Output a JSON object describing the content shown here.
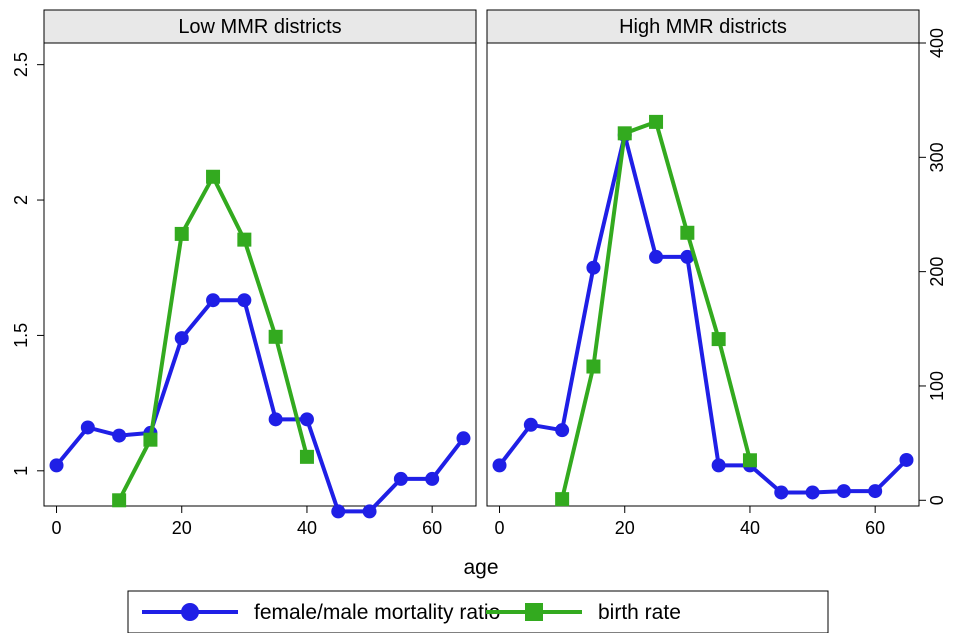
{
  "chart_data": {
    "type": "line",
    "xlabel": "age",
    "panels": [
      {
        "title": "Low MMR districts",
        "series": [
          {
            "name": "female/male mortality ratio",
            "axis": "left",
            "color": "#1f1fe6",
            "marker": "circle",
            "x": [
              0,
              5,
              10,
              15,
              20,
              25,
              30,
              35,
              40,
              45,
              50,
              55,
              60,
              65
            ],
            "values": [
              1.02,
              1.16,
              1.13,
              1.14,
              1.49,
              1.63,
              1.63,
              1.19,
              1.19,
              0.85,
              0.85,
              0.97,
              0.97,
              1.12
            ]
          },
          {
            "name": "birth rate",
            "axis": "right",
            "color": "#33aa1f",
            "marker": "square",
            "x": [
              10,
              15,
              20,
              25,
              30,
              35,
              40
            ],
            "values": [
              0,
              53,
              233,
              283,
              228,
              143,
              38
            ]
          }
        ]
      },
      {
        "title": "High MMR districts",
        "series": [
          {
            "name": "female/male mortality ratio",
            "axis": "left",
            "color": "#1f1fe6",
            "marker": "circle",
            "x": [
              0,
              5,
              10,
              15,
              20,
              25,
              30,
              35,
              40,
              45,
              50,
              55,
              60,
              65
            ],
            "values": [
              1.02,
              1.17,
              1.15,
              1.75,
              2.24,
              1.79,
              1.79,
              1.02,
              1.02,
              0.92,
              0.92,
              0.925,
              0.925,
              1.04
            ]
          },
          {
            "name": "birth rate",
            "axis": "right",
            "color": "#33aa1f",
            "marker": "square",
            "x": [
              10,
              15,
              20,
              25,
              30,
              35,
              40
            ],
            "values": [
              1,
              117,
              321,
              331,
              234,
              141,
              35
            ]
          }
        ]
      }
    ],
    "xlim": [
      -2,
      67
    ],
    "xticks": [
      "0",
      "20",
      "40",
      "60"
    ],
    "left_axis": {
      "ylim": [
        0.87,
        2.58
      ],
      "ticks": [
        "1",
        "1.5",
        "2",
        "2.5"
      ]
    },
    "right_axis": {
      "ylim": [
        -5,
        400
      ],
      "ticks": [
        "0",
        "100",
        "200",
        "300",
        "400"
      ]
    },
    "grid": false,
    "legend": {
      "position": "bottom",
      "entries": [
        {
          "label": "female/male mortality ratio",
          "color": "#1f1fe6",
          "marker": "circle"
        },
        {
          "label": "birth rate",
          "color": "#33aa1f",
          "marker": "square"
        }
      ]
    }
  }
}
